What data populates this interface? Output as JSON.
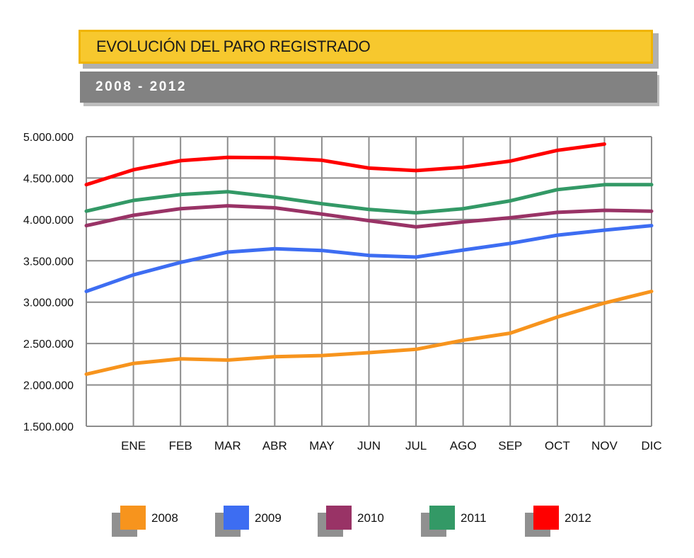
{
  "header": {
    "title": "EVOLUCIÓN DEL PARO REGISTRADO",
    "subtitle": "2008 - 2012"
  },
  "chart_data": {
    "type": "line",
    "title": "EVOLUCIÓN DEL PARO REGISTRADO",
    "subtitle": "2008 - 2012",
    "categories": [
      "",
      "ENE",
      "FEB",
      "MAR",
      "ABR",
      "MAY",
      "JUN",
      "JUL",
      "AGO",
      "SEP",
      "OCT",
      "NOV",
      "DIC"
    ],
    "y_ticks": [
      "5.000.000",
      "4.500.000",
      "4.000.000",
      "3.500.000",
      "3.000.000",
      "2.500.000",
      "2.000.000",
      "1.500.000"
    ],
    "ylim": [
      1500000,
      5000000
    ],
    "grid": true,
    "legend_position": "bottom",
    "series": [
      {
        "name": "2008",
        "color": "#f7941d",
        "values": [
          2130000,
          2260000,
          2315000,
          2300000,
          2340000,
          2355000,
          2390000,
          2430000,
          2540000,
          2625000,
          2820000,
          2990000,
          3130000
        ]
      },
      {
        "name": "2009",
        "color": "#3d6df2",
        "values": [
          3130000,
          3330000,
          3480000,
          3605000,
          3645000,
          3625000,
          3565000,
          3545000,
          3630000,
          3710000,
          3810000,
          3870000,
          3925000
        ]
      },
      {
        "name": "2010",
        "color": "#993366",
        "values": [
          3925000,
          4050000,
          4130000,
          4165000,
          4140000,
          4065000,
          3985000,
          3910000,
          3970000,
          4020000,
          4085000,
          4110000,
          4100000
        ]
      },
      {
        "name": "2011",
        "color": "#339966",
        "values": [
          4100000,
          4230000,
          4300000,
          4335000,
          4270000,
          4190000,
          4120000,
          4080000,
          4130000,
          4225000,
          4360000,
          4420000,
          4420000
        ]
      },
      {
        "name": "2012",
        "color": "#ff0000",
        "values": [
          4420000,
          4600000,
          4710000,
          4750000,
          4745000,
          4715000,
          4620000,
          4590000,
          4630000,
          4705000,
          4835000,
          4910000,
          null
        ]
      }
    ]
  }
}
